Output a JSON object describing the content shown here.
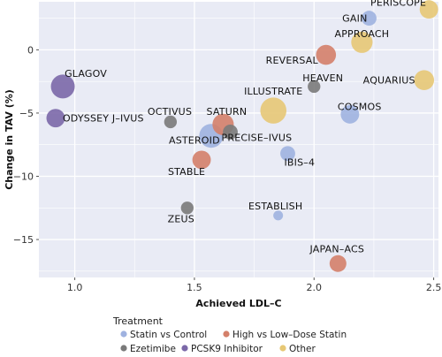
{
  "chart_data": {
    "type": "scatter",
    "xlabel": "Achieved LDL–C",
    "ylabel": "Change in TAV (%)",
    "xlim": [
      0.85,
      2.52
    ],
    "ylim": [
      -18,
      3.8
    ],
    "xticks": [
      1.0,
      1.5,
      2.0,
      2.5
    ],
    "xtick_labels": [
      "1.0",
      "1.5",
      "2.0",
      "2.5"
    ],
    "yticks": [
      0,
      -5,
      -10,
      -15
    ],
    "ytick_labels": [
      "0",
      "−5",
      "−10",
      "−15"
    ],
    "grid": true,
    "background": "#e9ebf5",
    "gridline_color": "#ffffff",
    "legend": {
      "title": "Treatment",
      "placement": "bottom",
      "entries": [
        {
          "key": "statin",
          "label": "Statin vs Control",
          "color": "#9fb2e0"
        },
        {
          "key": "highlow",
          "label": "High vs Low–Dose Statin",
          "color": "#d4806a"
        },
        {
          "key": "ezetimibe",
          "label": "Ezetimibe",
          "color": "#7a7a7a"
        },
        {
          "key": "pcsk9",
          "label": "PCSK9 Inhibitor",
          "color": "#7b68a8"
        },
        {
          "key": "other",
          "label": "Other",
          "color": "#e7c875"
        }
      ]
    },
    "points": [
      {
        "label": "PERISCOPE",
        "x": 2.48,
        "y": 3.2,
        "size": 5,
        "group": "other"
      },
      {
        "label": "GAIN",
        "x": 2.23,
        "y": 2.5,
        "size": 3,
        "group": "statin"
      },
      {
        "label": "APPROACH",
        "x": 2.2,
        "y": 0.6,
        "size": 7,
        "group": "other"
      },
      {
        "label": "REVERSAL",
        "x": 2.05,
        "y": -0.4,
        "size": 6,
        "group": "highlow"
      },
      {
        "label": "AQUARIUS",
        "x": 2.46,
        "y": -2.4,
        "size": 6,
        "group": "other"
      },
      {
        "label": "HEAVEN",
        "x": 2.0,
        "y": -2.9,
        "size": 2,
        "group": "ezetimibe"
      },
      {
        "label": "GLAGOV",
        "x": 0.95,
        "y": -2.9,
        "size": 9,
        "group": "pcsk9"
      },
      {
        "label": "COSMOS",
        "x": 2.15,
        "y": -5.1,
        "size": 5,
        "group": "statin"
      },
      {
        "label": "ILLUSTRATE",
        "x": 1.83,
        "y": -4.8,
        "size": 11,
        "group": "other"
      },
      {
        "label": "ODYSSEY J–IVUS",
        "x": 0.92,
        "y": -5.4,
        "size": 5,
        "group": "pcsk9"
      },
      {
        "label": "OCTIVUS",
        "x": 1.4,
        "y": -5.7,
        "size": 2,
        "group": "ezetimibe"
      },
      {
        "label": "SATURN",
        "x": 1.62,
        "y": -5.9,
        "size": 7,
        "group": "highlow"
      },
      {
        "label": "ASTEROID",
        "x": 1.57,
        "y": -6.8,
        "size": 9,
        "group": "statin"
      },
      {
        "label": "PRECISE–IVUS",
        "x": 1.65,
        "y": -6.5,
        "size": 3,
        "group": "ezetimibe"
      },
      {
        "label": "IBIS–4",
        "x": 1.89,
        "y": -8.2,
        "size": 3,
        "group": "statin"
      },
      {
        "label": "STABLE",
        "x": 1.53,
        "y": -8.7,
        "size": 5,
        "group": "highlow"
      },
      {
        "label": "ZEUS",
        "x": 1.47,
        "y": -12.5,
        "size": 2,
        "group": "ezetimibe"
      },
      {
        "label": "ESTABLISH",
        "x": 1.85,
        "y": -13.1,
        "size": 1,
        "group": "statin"
      },
      {
        "label": "JAPAN–ACS",
        "x": 2.1,
        "y": -16.9,
        "size": 4,
        "group": "highlow"
      }
    ]
  }
}
